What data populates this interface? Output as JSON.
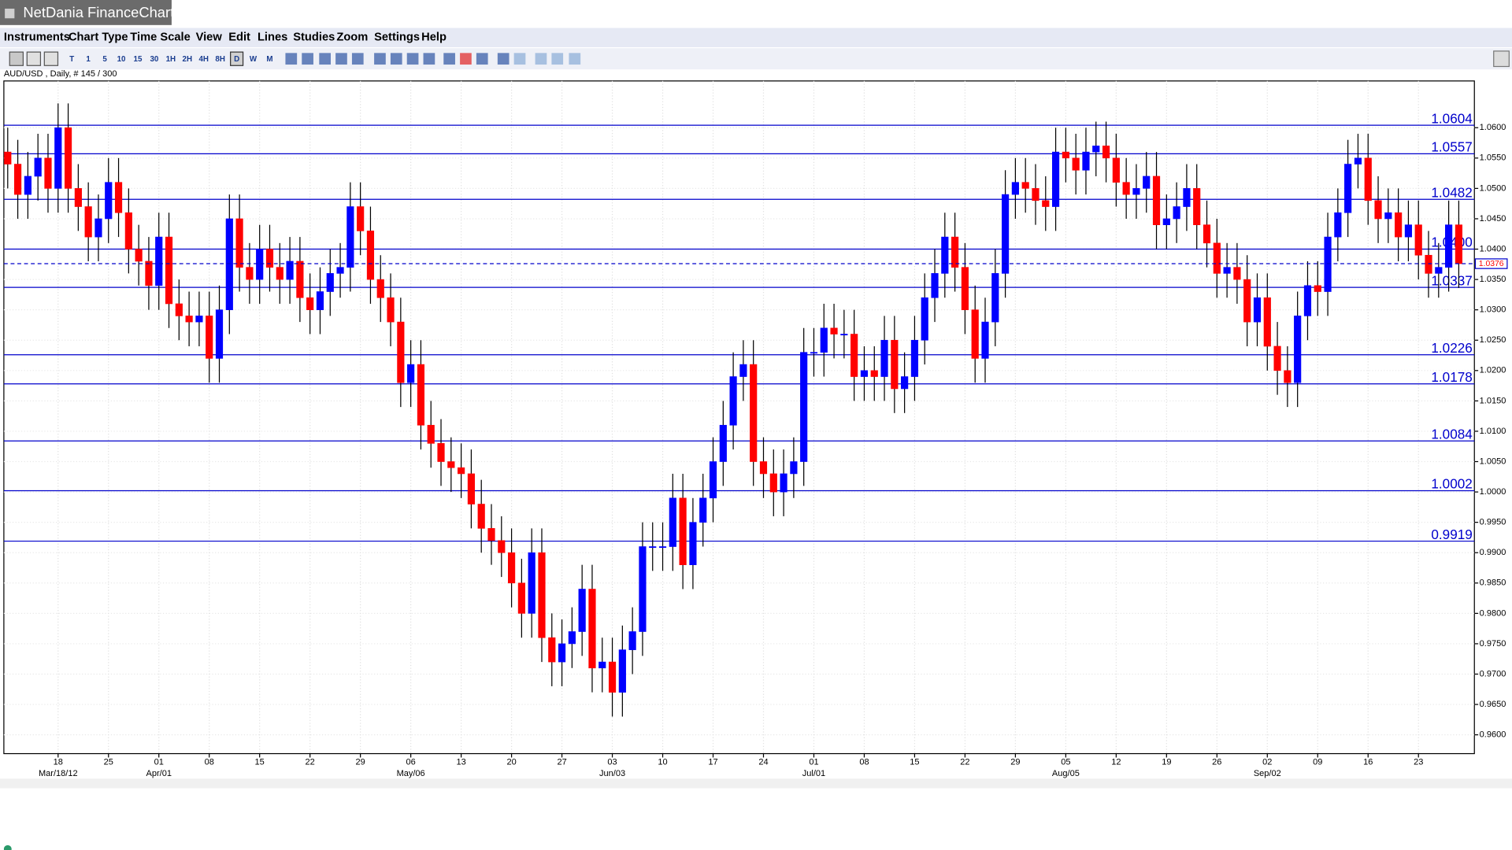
{
  "app": {
    "title": "NetDania FinanceChart",
    "menu": [
      "Instruments",
      "Chart Type",
      "Time Scale",
      "View",
      "Edit",
      "Lines",
      "Studies",
      "Zoom",
      "Settings",
      "Help"
    ],
    "toolbar": [
      "T",
      "1",
      "5",
      "10",
      "15",
      "30",
      "1H",
      "2H",
      "4H",
      "8H",
      "D",
      "W",
      "M"
    ]
  },
  "chart_data": {
    "type": "candlestick",
    "title": "AUD/USD , Daily, # 145 / 300",
    "up_color": "#0000ff",
    "down_color": "#ff0000",
    "level_color": "#0000cc",
    "grid": true,
    "categories": [
      null,
      null,
      null,
      null,
      null,
      "18",
      null,
      null,
      null,
      null,
      "25",
      null,
      null,
      null,
      null,
      "01",
      null,
      null,
      null,
      null,
      "08",
      null,
      null,
      null,
      null,
      "15",
      null,
      null,
      null,
      null,
      "22",
      null,
      null,
      null,
      null,
      "29",
      null,
      null,
      null,
      null,
      "06",
      null,
      null,
      null,
      null,
      "13",
      null,
      null,
      null,
      null,
      "20",
      null,
      null,
      null,
      null,
      "27",
      null,
      null,
      null,
      null,
      "03",
      null,
      null,
      null,
      null,
      "10",
      null,
      null,
      null,
      null,
      "17",
      null,
      null,
      null,
      null,
      "24",
      null,
      null,
      null,
      null,
      "01",
      null,
      null,
      null,
      null,
      "08",
      null,
      null,
      null,
      null,
      "15",
      null,
      null,
      null,
      null,
      "22",
      null,
      null,
      null,
      null,
      "29",
      null,
      null,
      null,
      null,
      "05",
      null,
      null,
      null,
      null,
      "12",
      null,
      null,
      null,
      null,
      "19",
      null,
      null,
      null,
      null,
      "26",
      null,
      null,
      null,
      null,
      "02",
      null,
      null,
      null,
      null,
      "09",
      null,
      null,
      null,
      null,
      "16",
      null,
      null,
      null,
      null,
      "23",
      null,
      null,
      null,
      null
    ],
    "months": [
      null,
      null,
      null,
      null,
      null,
      "Mar/18/12",
      null,
      null,
      null,
      null,
      null,
      null,
      null,
      null,
      null,
      "Apr/01",
      null,
      null,
      null,
      null,
      null,
      null,
      null,
      null,
      null,
      null,
      null,
      null,
      null,
      null,
      null,
      null,
      null,
      null,
      null,
      null,
      null,
      null,
      null,
      null,
      "May/06",
      null,
      null,
      null,
      null,
      null,
      null,
      null,
      null,
      null,
      null,
      null,
      null,
      null,
      null,
      null,
      null,
      null,
      null,
      null,
      "Jun/03",
      null,
      null,
      null,
      null,
      null,
      null,
      null,
      null,
      null,
      null,
      null,
      null,
      null,
      null,
      null,
      null,
      null,
      null,
      null,
      "Jul/01",
      null,
      null,
      null,
      null,
      null,
      null,
      null,
      null,
      null,
      null,
      null,
      null,
      null,
      null,
      null,
      null,
      null,
      null,
      null,
      null,
      null,
      null,
      null,
      null,
      "Aug/05",
      null,
      null,
      null,
      null,
      null,
      null,
      null,
      null,
      null,
      null,
      null,
      null,
      null,
      null,
      null,
      null,
      null,
      null,
      null,
      "Sep/02",
      null,
      null,
      null,
      null,
      null,
      null,
      null,
      null,
      null,
      null,
      null,
      null,
      null,
      null,
      null,
      null,
      null,
      null,
      null
    ],
    "open": [
      1.056,
      1.054,
      1.049,
      1.052,
      1.055,
      1.05,
      1.06,
      1.05,
      1.047,
      1.042,
      1.045,
      1.051,
      1.046,
      1.04,
      1.038,
      1.034,
      1.042,
      1.031,
      1.029,
      1.028,
      1.029,
      1.022,
      1.03,
      1.045,
      1.037,
      1.035,
      1.04,
      1.037,
      1.035,
      1.038,
      1.032,
      1.03,
      1.033,
      1.036,
      1.037,
      1.047,
      1.043,
      1.035,
      1.032,
      1.028,
      1.018,
      1.021,
      1.011,
      1.008,
      1.005,
      1.004,
      1.003,
      0.998,
      0.994,
      0.992,
      0.99,
      0.985,
      0.98,
      0.99,
      0.976,
      0.972,
      0.975,
      0.977,
      0.984,
      0.971,
      0.972,
      0.967,
      0.974,
      0.977,
      0.991,
      0.991,
      0.991,
      0.999,
      0.988,
      0.995,
      0.999,
      1.005,
      1.011,
      1.019,
      1.021,
      1.005,
      1.003,
      1.0,
      1.003,
      1.005,
      1.023,
      1.023,
      1.027,
      1.026,
      1.026,
      1.019,
      1.02,
      1.019,
      1.025,
      1.017,
      1.019,
      1.025,
      1.032,
      1.036,
      1.042,
      1.037,
      1.03,
      1.022,
      1.028,
      1.036,
      1.049,
      1.051,
      1.05,
      1.048,
      1.047,
      1.056,
      1.055,
      1.053,
      1.056,
      1.057,
      1.055,
      1.051,
      1.049,
      1.05,
      1.052,
      1.044,
      1.045,
      1.047,
      1.05,
      1.044,
      1.041,
      1.036,
      1.037,
      1.035,
      1.028,
      1.032,
      1.024,
      1.02,
      1.018,
      1.029,
      1.034,
      1.033,
      1.042,
      1.046,
      1.054,
      1.055,
      1.048,
      1.045,
      1.046,
      1.042,
      1.044,
      1.039,
      1.036,
      1.037,
      1.044
    ],
    "high": [
      1.06,
      1.058,
      1.056,
      1.059,
      1.059,
      1.064,
      1.064,
      1.054,
      1.051,
      1.049,
      1.055,
      1.055,
      1.05,
      1.044,
      1.042,
      1.046,
      1.046,
      1.035,
      1.033,
      1.033,
      1.033,
      1.034,
      1.049,
      1.049,
      1.041,
      1.044,
      1.044,
      1.041,
      1.042,
      1.042,
      1.036,
      1.037,
      1.04,
      1.041,
      1.051,
      1.051,
      1.047,
      1.039,
      1.036,
      1.032,
      1.025,
      1.025,
      1.015,
      1.012,
      1.009,
      1.008,
      1.007,
      1.002,
      0.998,
      0.996,
      0.994,
      0.989,
      0.994,
      0.994,
      0.98,
      0.979,
      0.981,
      0.988,
      0.988,
      0.976,
      0.976,
      0.978,
      0.981,
      0.995,
      0.995,
      0.995,
      1.003,
      1.003,
      0.999,
      1.003,
      1.009,
      1.015,
      1.023,
      1.025,
      1.025,
      1.009,
      1.007,
      1.007,
      1.009,
      1.027,
      1.027,
      1.031,
      1.031,
      1.03,
      1.03,
      1.024,
      1.024,
      1.029,
      1.029,
      1.023,
      1.029,
      1.036,
      1.04,
      1.046,
      1.046,
      1.041,
      1.034,
      1.032,
      1.04,
      1.053,
      1.055,
      1.055,
      1.054,
      1.052,
      1.06,
      1.06,
      1.059,
      1.06,
      1.061,
      1.061,
      1.059,
      1.055,
      1.054,
      1.056,
      1.056,
      1.049,
      1.051,
      1.054,
      1.054,
      1.048,
      1.045,
      1.041,
      1.041,
      1.039,
      1.036,
      1.036,
      1.028,
      1.024,
      1.033,
      1.038,
      1.038,
      1.046,
      1.05,
      1.058,
      1.059,
      1.059,
      1.052,
      1.05,
      1.05,
      1.048,
      1.048,
      1.043,
      1.041,
      1.048,
      1.048
    ],
    "low": [
      1.05,
      1.045,
      1.045,
      1.048,
      1.046,
      1.046,
      1.046,
      1.043,
      1.038,
      1.038,
      1.041,
      1.042,
      1.036,
      1.034,
      1.03,
      1.03,
      1.027,
      1.025,
      1.024,
      1.024,
      1.018,
      1.018,
      1.026,
      1.033,
      1.031,
      1.031,
      1.033,
      1.031,
      1.031,
      1.028,
      1.026,
      1.026,
      1.029,
      1.032,
      1.033,
      1.039,
      1.031,
      1.028,
      1.024,
      1.014,
      1.014,
      1.007,
      1.004,
      1.001,
      1.0,
      0.999,
      0.994,
      0.99,
      0.988,
      0.986,
      0.981,
      0.976,
      0.976,
      0.972,
      0.968,
      0.968,
      0.971,
      0.973,
      0.967,
      0.967,
      0.963,
      0.963,
      0.97,
      0.973,
      0.987,
      0.987,
      0.987,
      0.984,
      0.984,
      0.991,
      0.995,
      1.001,
      1.007,
      1.015,
      1.001,
      0.999,
      0.996,
      0.996,
      0.999,
      1.001,
      1.019,
      1.019,
      1.022,
      1.022,
      1.015,
      1.015,
      1.015,
      1.015,
      1.013,
      1.013,
      1.015,
      1.021,
      1.028,
      1.032,
      1.033,
      1.026,
      1.018,
      1.018,
      1.024,
      1.032,
      1.045,
      1.046,
      1.044,
      1.043,
      1.043,
      1.051,
      1.049,
      1.049,
      1.052,
      1.051,
      1.047,
      1.045,
      1.045,
      1.046,
      1.04,
      1.04,
      1.041,
      1.043,
      1.04,
      1.037,
      1.032,
      1.032,
      1.031,
      1.024,
      1.024,
      1.02,
      1.016,
      1.014,
      1.014,
      1.025,
      1.029,
      1.029,
      1.038,
      1.042,
      1.05,
      1.044,
      1.041,
      1.041,
      1.038,
      1.038,
      1.035,
      1.032,
      1.032,
      1.033,
      1.0336
    ],
    "close": [
      1.054,
      1.049,
      1.052,
      1.055,
      1.05,
      1.06,
      1.05,
      1.047,
      1.042,
      1.045,
      1.051,
      1.046,
      1.04,
      1.038,
      1.034,
      1.042,
      1.031,
      1.029,
      1.028,
      1.029,
      1.022,
      1.03,
      1.045,
      1.037,
      1.035,
      1.04,
      1.037,
      1.035,
      1.038,
      1.032,
      1.03,
      1.033,
      1.036,
      1.037,
      1.047,
      1.043,
      1.035,
      1.032,
      1.028,
      1.018,
      1.021,
      1.011,
      1.008,
      1.005,
      1.004,
      1.003,
      0.998,
      0.994,
      0.992,
      0.99,
      0.985,
      0.98,
      0.99,
      0.976,
      0.972,
      0.975,
      0.977,
      0.984,
      0.971,
      0.972,
      0.967,
      0.974,
      0.977,
      0.991,
      0.991,
      0.991,
      0.999,
      0.988,
      0.995,
      0.999,
      1.005,
      1.011,
      1.019,
      1.021,
      1.005,
      1.003,
      1.0,
      1.003,
      1.005,
      1.023,
      1.023,
      1.027,
      1.026,
      1.026,
      1.019,
      1.02,
      1.019,
      1.025,
      1.017,
      1.019,
      1.025,
      1.032,
      1.036,
      1.042,
      1.037,
      1.03,
      1.022,
      1.028,
      1.036,
      1.049,
      1.051,
      1.05,
      1.048,
      1.047,
      1.056,
      1.055,
      1.053,
      1.056,
      1.057,
      1.055,
      1.051,
      1.049,
      1.05,
      1.052,
      1.044,
      1.045,
      1.047,
      1.05,
      1.044,
      1.041,
      1.036,
      1.037,
      1.035,
      1.028,
      1.032,
      1.024,
      1.02,
      1.018,
      1.029,
      1.034,
      1.033,
      1.042,
      1.046,
      1.054,
      1.055,
      1.048,
      1.045,
      1.046,
      1.042,
      1.044,
      1.039,
      1.036,
      1.037,
      1.044,
      1.0376
    ],
    "last": 1.0376,
    "levels": [
      1.0604,
      1.0557,
      1.0482,
      {
        "value": 1.04,
        "label": "1.0400"
      },
      1.0337,
      1.0226,
      1.0178,
      1.0084,
      1.0002,
      0.9919
    ],
    "ylim": [
      0.9569,
      1.0677
    ],
    "yticks": [
      {
        "value": 0.96,
        "label": "0.9600"
      },
      {
        "value": 0.965,
        "label": "0.9650"
      },
      {
        "value": 0.97,
        "label": "0.9700"
      },
      {
        "value": 0.975,
        "label": "0.9750"
      },
      {
        "value": 0.98,
        "label": "0.9800"
      },
      {
        "value": 0.985,
        "label": "0.9850"
      },
      {
        "value": 0.99,
        "label": "0.9900"
      },
      {
        "value": 0.995,
        "label": "0.9950"
      },
      {
        "value": 1.0,
        "label": "1.0000"
      },
      {
        "value": 1.005,
        "label": "1.0050"
      },
      {
        "value": 1.01,
        "label": "1.0100"
      },
      {
        "value": 1.015,
        "label": "1.0150"
      },
      {
        "value": 1.02,
        "label": "1.0200"
      },
      {
        "value": 1.025,
        "label": "1.0250"
      },
      {
        "value": 1.03,
        "label": "1.0300"
      },
      {
        "value": 1.035,
        "label": "1.0350"
      },
      {
        "value": 1.04,
        "label": "1.0400"
      },
      {
        "value": 1.045,
        "label": "1.0450"
      },
      {
        "value": 1.05,
        "label": "1.0500"
      },
      {
        "value": 1.055,
        "label": "1.0550"
      },
      {
        "value": 1.06,
        "label": "1.0600"
      }
    ]
  }
}
